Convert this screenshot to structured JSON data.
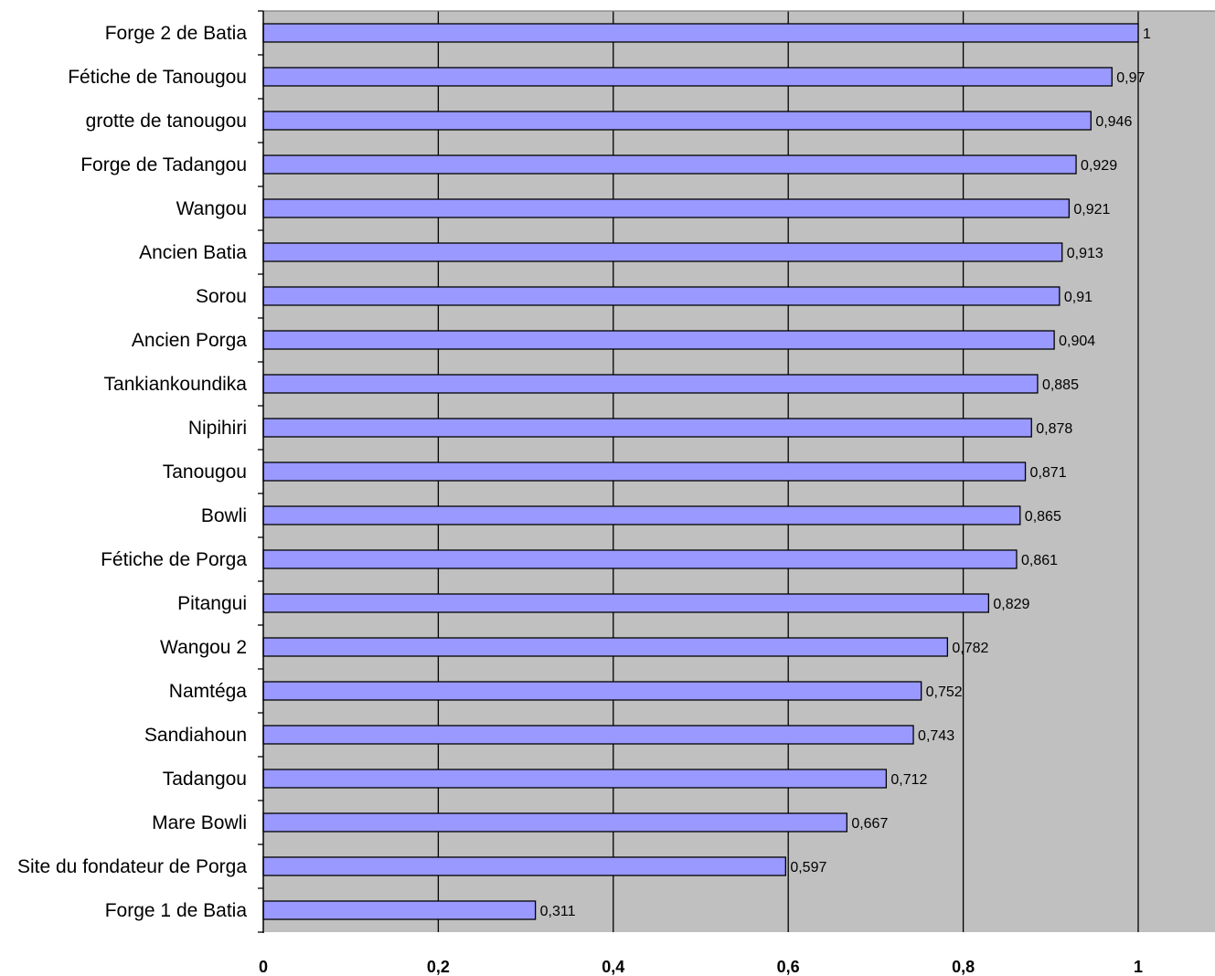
{
  "chart_data": {
    "type": "bar",
    "orientation": "horizontal",
    "title": "",
    "xlabel": "",
    "ylabel": "",
    "xlim": [
      0,
      1.1
    ],
    "x_ticks": [
      {
        "value": 0,
        "label": "0"
      },
      {
        "value": 0.2,
        "label": "0,2"
      },
      {
        "value": 0.4,
        "label": "0,4"
      },
      {
        "value": 0.6,
        "label": "0,6"
      },
      {
        "value": 0.8,
        "label": "0,8"
      },
      {
        "value": 1,
        "label": "1"
      }
    ],
    "grid": "vertical",
    "legend": "none",
    "colors": {
      "plot_background": "#c0c0c0",
      "bar_fill": "#9999ff",
      "bar_stroke": "#000000",
      "grid": "#000000"
    },
    "categories": [
      "Forge 2 de Batia",
      "Fétiche de Tanougou",
      "grotte de tanougou",
      "Forge de Tadangou",
      "Wangou",
      "Ancien Batia",
      "Sorou",
      "Ancien Porga",
      "Tankiankoundika",
      "Nipihiri",
      "Tanougou",
      "Bowli",
      "Fétiche de Porga",
      "Pitangui",
      "Wangou 2",
      "Namtéga",
      "Sandiahoun",
      "Tadangou",
      "Mare Bowli",
      "Site du fondateur de Porga",
      "Forge 1 de Batia"
    ],
    "values": [
      1,
      0.97,
      0.946,
      0.929,
      0.921,
      0.913,
      0.91,
      0.904,
      0.885,
      0.878,
      0.871,
      0.865,
      0.861,
      0.829,
      0.782,
      0.752,
      0.743,
      0.712,
      0.667,
      0.597,
      0.311
    ],
    "value_labels": [
      "1",
      "0,97",
      "0,946",
      "0,929",
      "0,921",
      "0,913",
      "0,91",
      "0,904",
      "0,885",
      "0,878",
      "0,871",
      "0,865",
      "0,861",
      "0,829",
      "0,782",
      "0,752",
      "0,743",
      "0,712",
      "0,667",
      "0,597",
      "0,311"
    ]
  }
}
